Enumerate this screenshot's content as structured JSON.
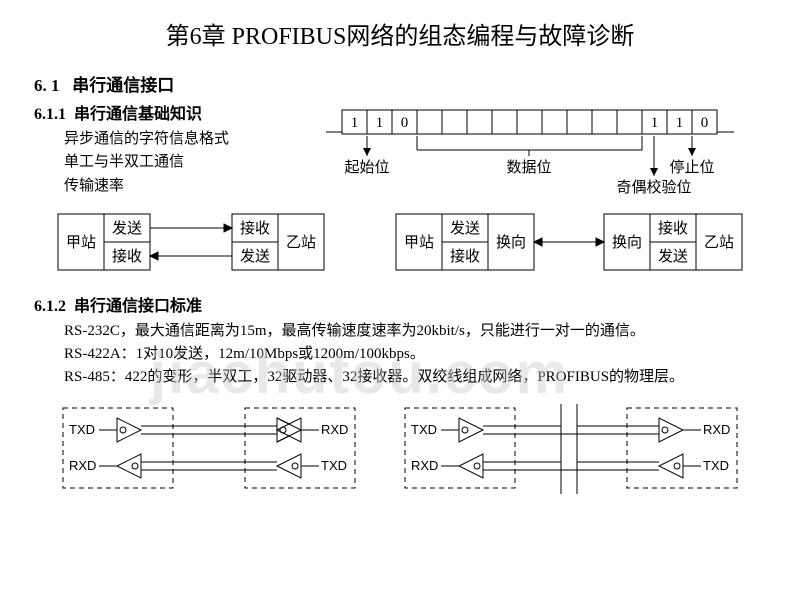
{
  "title": "第6章 PROFIBUS网络的组态编程与故障诊断",
  "section": {
    "num": "6. 1",
    "label": "串行通信接口"
  },
  "sub1": {
    "num": "6.1.1",
    "label": "串行通信基础知识",
    "l1": "异步通信的字符信息格式",
    "l2": "单工与半双工通信",
    "l3": "传输速率"
  },
  "frame": {
    "bits": [
      "1",
      "1",
      "0",
      "",
      "",
      "",
      "",
      "",
      "",
      "",
      "",
      "",
      "1",
      "1",
      "0"
    ],
    "start": "起始位",
    "data": "数据位",
    "parity": "奇偶校验位",
    "stop": "停止位"
  },
  "boxes": {
    "jia": "甲站",
    "yi": "乙站",
    "fs": "发送",
    "js": "接收",
    "hx": "换向"
  },
  "sub2": {
    "num": "6.1.2",
    "label": "串行通信接口标准",
    "p1": "RS-232C，最大通信距离为15m，最高传输速度速率为20kbit/s，只能进行一对一的通信。",
    "p2": "RS-422A：1对10发送，12m/10Mbps或1200m/100kbps。",
    "p3": "RS-485：422的变形，半双工，32驱动器、32接收器。双绞线组成网络，PROFIBUS的物理层。"
  },
  "pins": {
    "txd": "TXD",
    "rxd": "RXD"
  },
  "wm": "jiachutou.com",
  "colors": {
    "line": "#000000",
    "wm": "rgba(200,200,200,0.42)"
  }
}
